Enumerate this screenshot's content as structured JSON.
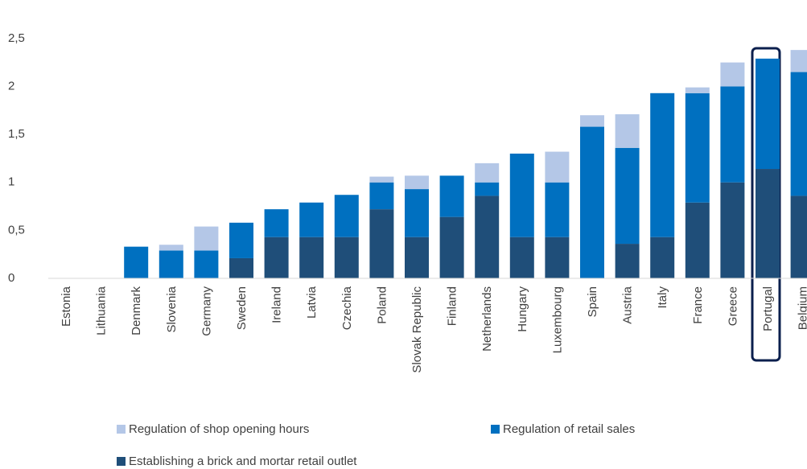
{
  "chart_data": {
    "type": "stacked_bar",
    "categories": [
      "Estonia",
      "Lithuania",
      "Denmark",
      "Slovenia",
      "Germany",
      "Sweden",
      "Ireland",
      "Latvia",
      "Czechia",
      "Poland",
      "Slovak Republic",
      "Finland",
      "Netherlands",
      "Hungary",
      "Luxembourg",
      "Spain",
      "Austria",
      "Italy",
      "France",
      "Greece",
      "Portugal",
      "Belgium"
    ],
    "series": [
      {
        "name": "Establishing a brick and mortar retail outlet",
        "color": "#1f4e79",
        "values": [
          0,
          0,
          0,
          0,
          0,
          0.21,
          0.43,
          0.43,
          0.43,
          0.72,
          0.43,
          0.64,
          0.86,
          0.43,
          0.43,
          0,
          0.36,
          0.43,
          0.79,
          1.0,
          1.14,
          0.86
        ]
      },
      {
        "name": "Regulation of retail sales",
        "color": "#0070c0",
        "values": [
          0,
          0,
          0.33,
          0.29,
          0.29,
          0.37,
          0.29,
          0.36,
          0.44,
          0.28,
          0.5,
          0.43,
          0.14,
          0.87,
          0.57,
          1.58,
          1.0,
          1.5,
          1.14,
          1.0,
          1.15,
          1.29
        ]
      },
      {
        "name": "Regulation of shop opening hours",
        "color": "#b4c7e7",
        "values": [
          0,
          0,
          0,
          0.06,
          0.25,
          0,
          0,
          0,
          0,
          0.06,
          0.14,
          0,
          0.2,
          0,
          0.32,
          0.12,
          0.35,
          0,
          0.06,
          0.25,
          0,
          0.23
        ]
      }
    ],
    "ylim": [
      0,
      2.75
    ],
    "yticks": [
      0,
      {
        "value": 0.5,
        "label": "0,5"
      },
      1,
      {
        "value": 1.5,
        "label": "1,5"
      },
      2,
      {
        "value": 2.5,
        "label": "2,5"
      }
    ]
  }
}
